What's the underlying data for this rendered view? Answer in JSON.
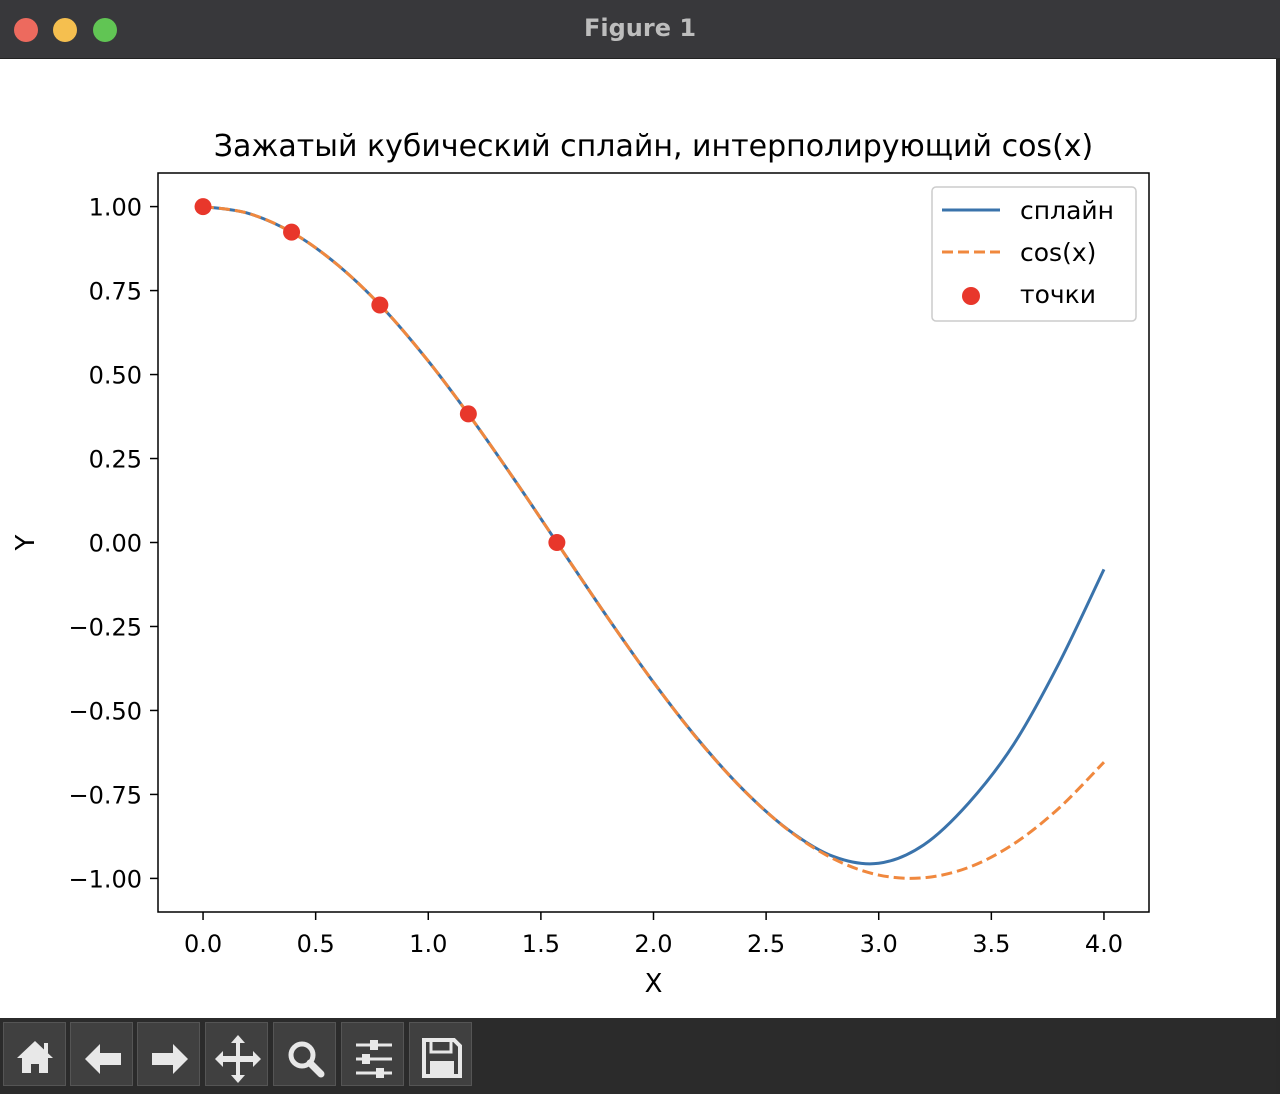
{
  "window": {
    "title": "Figure 1"
  },
  "toolbar": {
    "buttons": [
      {
        "icon": "home-icon"
      },
      {
        "icon": "back-arrow-icon"
      },
      {
        "icon": "forward-arrow-icon"
      },
      {
        "icon": "pan-move-icon"
      },
      {
        "icon": "zoom-magnifier-icon"
      },
      {
        "icon": "configure-subplots-icon"
      },
      {
        "icon": "save-disk-icon"
      }
    ]
  },
  "chart_data": {
    "type": "line",
    "title": "Зажатый кубический сплайн, интерполирующий cos(x)",
    "xlabel": "X",
    "ylabel": "Y",
    "xlim": [
      -0.2,
      4.2
    ],
    "ylim": [
      -1.1,
      1.1
    ],
    "xticks": [
      0.0,
      0.5,
      1.0,
      1.5,
      2.0,
      2.5,
      3.0,
      3.5,
      4.0
    ],
    "xtick_labels": [
      "0.0",
      "0.5",
      "1.0",
      "1.5",
      "2.0",
      "2.5",
      "3.0",
      "3.5",
      "4.0"
    ],
    "yticks": [
      1.0,
      0.75,
      0.5,
      0.25,
      0.0,
      -0.25,
      -0.5,
      -0.75,
      -1.0
    ],
    "ytick_labels": [
      "1.00",
      "0.75",
      "0.50",
      "0.25",
      "0.00",
      "−0.25",
      "−0.50",
      "−0.75",
      "−1.00"
    ],
    "legend_position": "top-right",
    "grid": false,
    "series": [
      {
        "name": "сплайн",
        "style": "solid",
        "color": "#3a73ab",
        "x": [
          0.0,
          0.2,
          0.4,
          0.6,
          0.8,
          1.0,
          1.2,
          1.4,
          1.6,
          1.8,
          2.0,
          2.2,
          2.4,
          2.6,
          2.8,
          3.0,
          3.2,
          3.4,
          3.6,
          3.8,
          4.0
        ],
        "y": [
          1.0,
          0.98,
          0.921,
          0.825,
          0.697,
          0.54,
          0.362,
          0.17,
          -0.029,
          -0.227,
          -0.416,
          -0.588,
          -0.737,
          -0.856,
          -0.935,
          -0.955,
          -0.9,
          -0.775,
          -0.6,
          -0.36,
          -0.08
        ]
      },
      {
        "name": "cos(x)",
        "style": "dashed",
        "color": "#f0883e",
        "x": [
          0.0,
          0.2,
          0.4,
          0.6,
          0.8,
          1.0,
          1.2,
          1.4,
          1.6,
          1.8,
          2.0,
          2.2,
          2.4,
          2.6,
          2.8,
          3.0,
          3.2,
          3.4,
          3.6,
          3.8,
          4.0
        ],
        "y": [
          1.0,
          0.98,
          0.921,
          0.825,
          0.697,
          0.54,
          0.362,
          0.17,
          -0.029,
          -0.227,
          -0.416,
          -0.589,
          -0.737,
          -0.857,
          -0.942,
          -0.99,
          -0.998,
          -0.967,
          -0.897,
          -0.791,
          -0.654
        ]
      },
      {
        "name": "точки",
        "style": "scatter",
        "color": "#e8372b",
        "x": [
          0.0,
          0.393,
          0.785,
          1.178,
          1.571
        ],
        "y": [
          1.0,
          0.924,
          0.707,
          0.383,
          0.0
        ]
      }
    ]
  }
}
